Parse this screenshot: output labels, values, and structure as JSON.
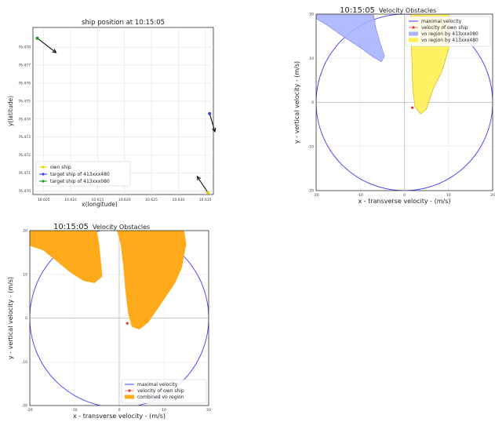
{
  "chart_data": [
    {
      "type": "scatter",
      "title": "ship position at 10:15:05",
      "xlabel": "x(longitude)",
      "ylabel": "y(latitude)",
      "xlim": [
        113.003,
        113.0365
      ],
      "ylim": [
        76.4698,
        76.4791
      ],
      "x_ticks": [
        "10.605",
        "10.610",
        "10.615",
        "10.620",
        "10.625",
        "10.630",
        "10.635"
      ],
      "x_tick_values": [
        113.005,
        113.01,
        113.015,
        113.02,
        113.025,
        113.03,
        113.035
      ],
      "y_ticks": [
        "76.470",
        "76.471",
        "76.472",
        "76.473",
        "76.474",
        "76.475",
        "76.476",
        "76.477",
        "76.478"
      ],
      "y_tick_values": [
        76.47,
        76.471,
        76.472,
        76.473,
        76.474,
        76.475,
        76.476,
        76.477,
        76.478
      ],
      "grid": true,
      "legend_position": "bottom-left",
      "series": [
        {
          "name": "own ship",
          "color": "#e8d000",
          "points": [
            [
              113.0355,
              76.4699
            ]
          ],
          "arrow_to": [
            113.0335,
            76.4708
          ]
        },
        {
          "name": "target ship of 413xxx480",
          "color": "#3a3aff",
          "points": [
            [
              113.0358,
              76.4743
            ]
          ],
          "arrow_to": [
            113.0368,
            76.4733
          ]
        },
        {
          "name": "target ship of 413xxx080",
          "color": "#1a9a1a",
          "points": [
            [
              113.0038,
              76.4785
            ]
          ],
          "arrow_to": [
            113.0073,
            76.4777
          ]
        }
      ]
    },
    {
      "type": "area",
      "title": "Velocity Obstacles",
      "time_label": "10:15:05",
      "xlabel": "x - transverse velocity - (m/s)",
      "ylabel": "y - vertical velocity - (m/s)",
      "xlim": [
        -20,
        20
      ],
      "ylim": [
        -20,
        20
      ],
      "x_ticks": [
        "-20",
        "-10",
        "0",
        "10",
        "20"
      ],
      "y_ticks": [
        "-20",
        "-10",
        "0",
        "10",
        "20"
      ],
      "grid": true,
      "legend_position": "top-right",
      "max_velocity_radius": 20,
      "own_velocity": [
        1.8,
        -1.2
      ],
      "series": [
        {
          "name": "maximal velocity",
          "color": "#3a3aff"
        },
        {
          "name": "velocity of own ship",
          "color": "#e03030"
        },
        {
          "name": "vo region by 413xxx080",
          "color": "#a8b4ff",
          "polygon": [
            [
              -20,
              20
            ],
            [
              -7,
              20
            ],
            [
              -6.5,
              17
            ],
            [
              -5.5,
              13.5
            ],
            [
              -4.5,
              10.5
            ],
            [
              -5.2,
              9.2
            ],
            [
              -7,
              10.2
            ],
            [
              -10,
              12.4
            ],
            [
              -14,
              15
            ],
            [
              -17.5,
              17.5
            ],
            [
              -20,
              19
            ]
          ]
        },
        {
          "name": "vo region by 413xxx480",
          "color": "#fff050",
          "polygon": [
            [
              1.5,
              20
            ],
            [
              10,
              20
            ],
            [
              10.5,
              17
            ],
            [
              10,
              12
            ],
            [
              8.5,
              7
            ],
            [
              6.5,
              3
            ],
            [
              5,
              -1.5
            ],
            [
              3.7,
              -2.6
            ],
            [
              2.4,
              -1
            ],
            [
              1.9,
              3
            ],
            [
              1.7,
              10
            ],
            [
              1.5,
              15
            ]
          ]
        }
      ]
    },
    {
      "type": "area",
      "title": "Velocity Obstacles",
      "time_label": "10:15:05",
      "xlabel": "x - transverse velocity - (m/s)",
      "ylabel": "y - vertical velocity - (m/s)",
      "xlim": [
        -20,
        20
      ],
      "ylim": [
        -20,
        20
      ],
      "x_ticks": [
        "-20",
        "-10",
        "0",
        "10",
        "20"
      ],
      "y_ticks": [
        "-20",
        "-10",
        "0",
        "10",
        "20"
      ],
      "grid": true,
      "legend_position": "bottom-right",
      "max_velocity_radius": 20,
      "own_velocity": [
        1.8,
        -1.2
      ],
      "series": [
        {
          "name": "maximal velocity",
          "color": "#3a3aff"
        },
        {
          "name": "velocity of own ship",
          "color": "#e03030"
        },
        {
          "name": "combined vo region",
          "color": "#ffaa1a",
          "polygons": [
            [
              [
                -20,
                20
              ],
              [
                -5,
                20
              ],
              [
                -4.5,
                17
              ],
              [
                -4,
                12
              ],
              [
                -3.8,
                9.5
              ],
              [
                -5.5,
                8
              ],
              [
                -8,
                8.5
              ],
              [
                -11,
                10.5
              ],
              [
                -14,
                13
              ],
              [
                -17,
                15.5
              ],
              [
                -20,
                16.5
              ]
            ],
            [
              [
                -0.5,
                20
              ],
              [
                14.5,
                20
              ],
              [
                15,
                17
              ],
              [
                14,
                11.5
              ],
              [
                12.5,
                8
              ],
              [
                10.5,
                5
              ],
              [
                8.5,
                2
              ],
              [
                6.5,
                -1
              ],
              [
                4.5,
                -2.6
              ],
              [
                2.8,
                -2
              ],
              [
                2,
                1
              ],
              [
                1.4,
                6
              ],
              [
                0.9,
                12
              ],
              [
                0.3,
                17
              ]
            ]
          ]
        }
      ]
    }
  ]
}
